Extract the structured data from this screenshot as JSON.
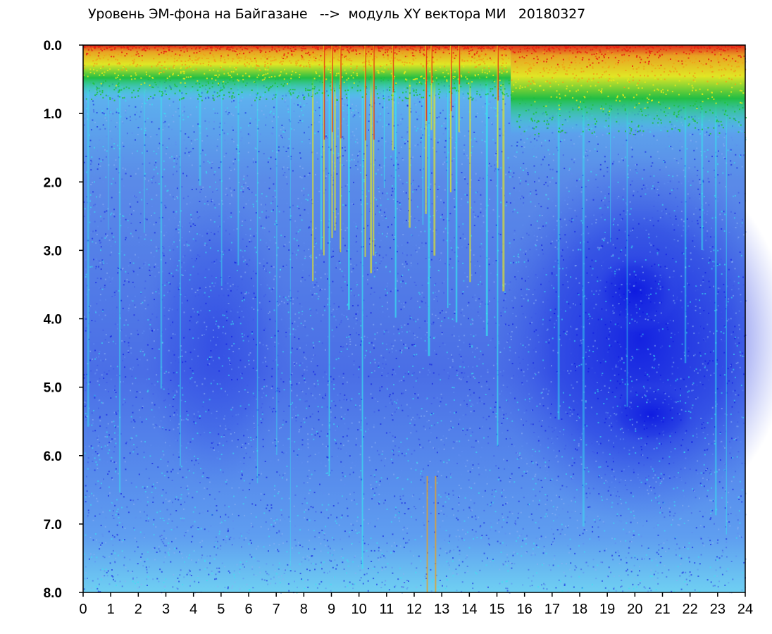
{
  "chart_data": {
    "type": "heatmap",
    "title": "Уровень ЭМ-фона на Байгазане   -->  модуль XY вектора МИ   20180327",
    "xlabel": "",
    "ylabel": "",
    "xlim": [
      0,
      24
    ],
    "ylim": [
      8.0,
      0.0
    ],
    "x_ticks": [
      "0",
      "1",
      "2",
      "3",
      "4",
      "5",
      "6",
      "7",
      "8",
      "9",
      "10",
      "11",
      "12",
      "13",
      "14",
      "15",
      "16",
      "17",
      "18",
      "19",
      "20",
      "21",
      "22",
      "23",
      "24"
    ],
    "y_ticks": [
      "0.0",
      "1.0",
      "2.0",
      "3.0",
      "4.0",
      "5.0",
      "6.0",
      "7.0",
      "8.0"
    ],
    "colorscale": [
      "#0a14e0",
      "#3a55e6",
      "#5e8cf0",
      "#36e8f0",
      "#1fbf3a",
      "#e8e81a",
      "#f0a018",
      "#e82010"
    ],
    "grid": false,
    "legend": "none",
    "description_regions": [
      {
        "x_range": [
          0,
          15.5
        ],
        "y_range": [
          0.0,
          0.8
        ],
        "level": "high"
      },
      {
        "x_range": [
          15.5,
          24
        ],
        "y_range": [
          0.0,
          1.3
        ],
        "level": "high"
      },
      {
        "x_range": [
          17.5,
          22.5
        ],
        "y_range": [
          3.0,
          7.0
        ],
        "level": "low"
      }
    ]
  }
}
